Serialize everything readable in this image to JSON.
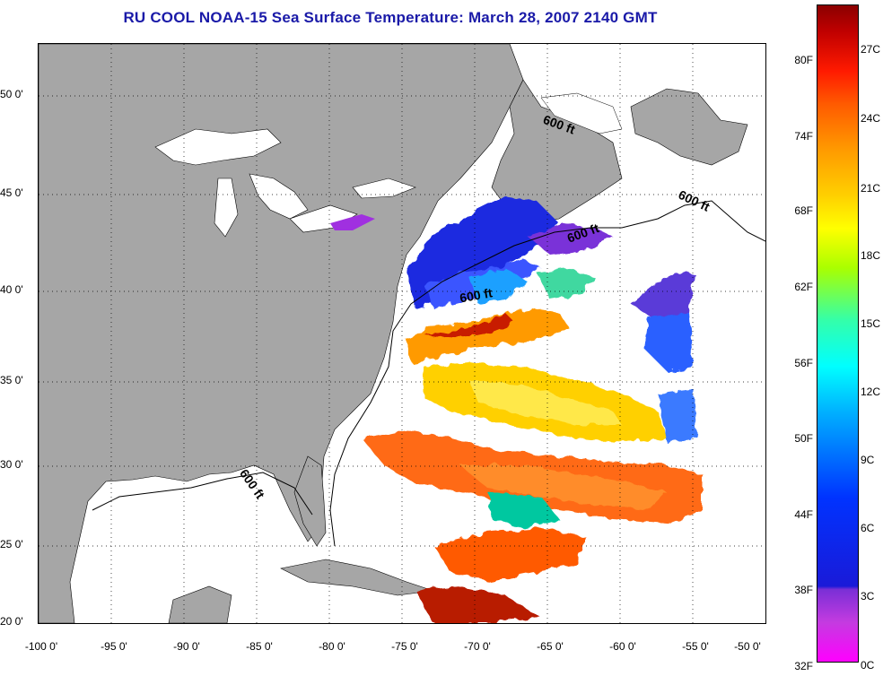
{
  "title": "RU COOL  NOAA-15  Sea Surface Temperature:  March 28, 2007 2140 GMT",
  "map": {
    "land_color": "#a6a6a6",
    "no_data_color": "#ffffff",
    "contour_label": "600 ft",
    "lat_labels": [
      "50 0'",
      "45 0'",
      "40 0'",
      "35 0'",
      "30 0'",
      "25 0'",
      "20 0'"
    ],
    "lon_labels": [
      "-100 0'",
      "-95 0'",
      "-90 0'",
      "-85 0'",
      "-80 0'",
      "-75 0'",
      "-70 0'",
      "-65 0'",
      "-60 0'",
      "-55 0'",
      "-50 0'"
    ]
  },
  "colorbar": {
    "fahrenheit_labels": [
      "80F",
      "74F",
      "68F",
      "62F",
      "56F",
      "50F",
      "44F",
      "38F",
      "32F"
    ],
    "celsius_labels": [
      "27C",
      "24C",
      "21C",
      "18C",
      "15C",
      "12C",
      "9C",
      "6C",
      "3C",
      "0C"
    ]
  }
}
